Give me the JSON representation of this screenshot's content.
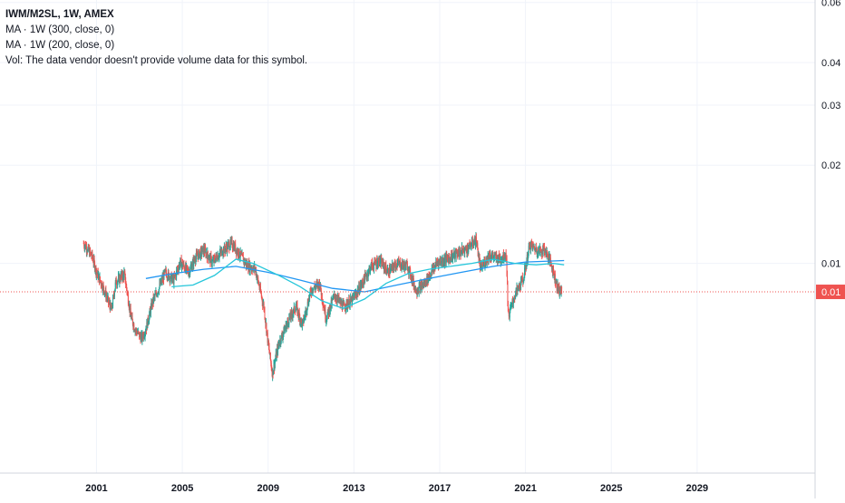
{
  "legend": {
    "title": "IWM/M2SL, 1W, AMEX",
    "ma1": "MA · 1W (300, close, 0)",
    "ma2": "MA · 1W (200, close, 0)",
    "vol": "Vol: The data vendor doesn't provide volume data for this symbol."
  },
  "colors": {
    "up": "#26a69a",
    "down": "#ef5350",
    "ma300": "#2196f3",
    "ma200": "#26c6da",
    "grid": "#f0f3fa",
    "axis_text": "#131722",
    "price_line": "#ef5350",
    "price_tag_bg": "#ef5350",
    "price_tag_text": "#ffffff"
  },
  "chart_data": {
    "type": "candlestick",
    "scale": "log",
    "x_range": [
      1996.5,
      2034.5
    ],
    "y_range": [
      0.0025,
      0.061
    ],
    "y_ticks": [
      {
        "value": 0.06,
        "label": "0.06"
      },
      {
        "value": 0.04,
        "label": "0.04"
      },
      {
        "value": 0.03,
        "label": "0.03"
      },
      {
        "value": 0.02,
        "label": "0.02"
      },
      {
        "value": 0.0103,
        "label": "0.01"
      }
    ],
    "x_ticks": [
      {
        "value": 2001,
        "label": "2001"
      },
      {
        "value": 2005,
        "label": "2005"
      },
      {
        "value": 2009,
        "label": "2009"
      },
      {
        "value": 2013,
        "label": "2013"
      },
      {
        "value": 2017,
        "label": "2017"
      },
      {
        "value": 2021,
        "label": "2021"
      },
      {
        "value": 2025,
        "label": "2025"
      },
      {
        "value": 2029,
        "label": "2029"
      }
    ],
    "last_price": {
      "value": 0.0085,
      "label": "0.01"
    },
    "price_path": [
      [
        2000.4,
        0.0118
      ],
      [
        2000.8,
        0.0108
      ],
      [
        2001.0,
        0.0097
      ],
      [
        2001.3,
        0.0088
      ],
      [
        2001.7,
        0.0075
      ],
      [
        2001.9,
        0.0091
      ],
      [
        2002.3,
        0.0096
      ],
      [
        2002.6,
        0.0072
      ],
      [
        2002.8,
        0.0066
      ],
      [
        2003.1,
        0.0062
      ],
      [
        2003.3,
        0.0066
      ],
      [
        2003.6,
        0.0079
      ],
      [
        2003.9,
        0.0087
      ],
      [
        2004.2,
        0.0097
      ],
      [
        2004.6,
        0.0092
      ],
      [
        2004.9,
        0.0104
      ],
      [
        2005.3,
        0.0097
      ],
      [
        2005.6,
        0.0107
      ],
      [
        2006.0,
        0.0113
      ],
      [
        2006.4,
        0.0104
      ],
      [
        2006.8,
        0.0111
      ],
      [
        2007.3,
        0.0118
      ],
      [
        2007.7,
        0.0109
      ],
      [
        2008.0,
        0.0102
      ],
      [
        2008.4,
        0.0099
      ],
      [
        2008.8,
        0.0077
      ],
      [
        2009.0,
        0.006
      ],
      [
        2009.2,
        0.0049
      ],
      [
        2009.5,
        0.006
      ],
      [
        2009.9,
        0.0069
      ],
      [
        2010.3,
        0.0077
      ],
      [
        2010.6,
        0.0068
      ],
      [
        2011.0,
        0.0086
      ],
      [
        2011.4,
        0.009
      ],
      [
        2011.7,
        0.0071
      ],
      [
        2012.1,
        0.0083
      ],
      [
        2012.5,
        0.0077
      ],
      [
        2012.9,
        0.008
      ],
      [
        2013.3,
        0.0088
      ],
      [
        2013.8,
        0.0101
      ],
      [
        2014.2,
        0.0105
      ],
      [
        2014.6,
        0.0097
      ],
      [
        2015.0,
        0.0103
      ],
      [
        2015.5,
        0.0101
      ],
      [
        2015.9,
        0.0086
      ],
      [
        2016.3,
        0.009
      ],
      [
        2016.9,
        0.0104
      ],
      [
        2017.3,
        0.0106
      ],
      [
        2017.8,
        0.011
      ],
      [
        2018.3,
        0.0114
      ],
      [
        2018.7,
        0.0121
      ],
      [
        2018.9,
        0.0099
      ],
      [
        2019.3,
        0.0109
      ],
      [
        2019.8,
        0.0106
      ],
      [
        2020.1,
        0.011
      ],
      [
        2020.2,
        0.0072
      ],
      [
        2020.5,
        0.0083
      ],
      [
        2020.9,
        0.0093
      ],
      [
        2021.2,
        0.0117
      ],
      [
        2021.6,
        0.0112
      ],
      [
        2021.9,
        0.0113
      ],
      [
        2022.2,
        0.0103
      ],
      [
        2022.5,
        0.0087
      ],
      [
        2022.7,
        0.0085
      ]
    ],
    "series": [
      {
        "name": "MA · 1W (300, close, 0)",
        "values": [
          [
            2003.3,
            0.0093
          ],
          [
            2004.5,
            0.0096
          ],
          [
            2006.0,
            0.0099
          ],
          [
            2007.5,
            0.0101
          ],
          [
            2009.0,
            0.0097
          ],
          [
            2010.5,
            0.0092
          ],
          [
            2012.0,
            0.0087
          ],
          [
            2013.5,
            0.0085
          ],
          [
            2015.0,
            0.0089
          ],
          [
            2016.5,
            0.0093
          ],
          [
            2018.0,
            0.0097
          ],
          [
            2019.5,
            0.0101
          ],
          [
            2021.0,
            0.0104
          ],
          [
            2022.8,
            0.0105
          ]
        ]
      },
      {
        "name": "MA · 1W (200, close, 0)",
        "values": [
          [
            2004.5,
            0.0088
          ],
          [
            2005.5,
            0.0089
          ],
          [
            2006.5,
            0.0095
          ],
          [
            2007.5,
            0.0106
          ],
          [
            2008.3,
            0.0103
          ],
          [
            2009.5,
            0.0095
          ],
          [
            2010.5,
            0.0088
          ],
          [
            2011.5,
            0.008
          ],
          [
            2012.5,
            0.0076
          ],
          [
            2013.5,
            0.0081
          ],
          [
            2014.5,
            0.009
          ],
          [
            2015.5,
            0.0096
          ],
          [
            2016.5,
            0.0099
          ],
          [
            2017.5,
            0.0101
          ],
          [
            2018.5,
            0.0103
          ],
          [
            2019.5,
            0.0106
          ],
          [
            2020.5,
            0.0103
          ],
          [
            2021.5,
            0.0102
          ],
          [
            2022.3,
            0.0103
          ],
          [
            2022.8,
            0.0102
          ]
        ]
      }
    ]
  }
}
